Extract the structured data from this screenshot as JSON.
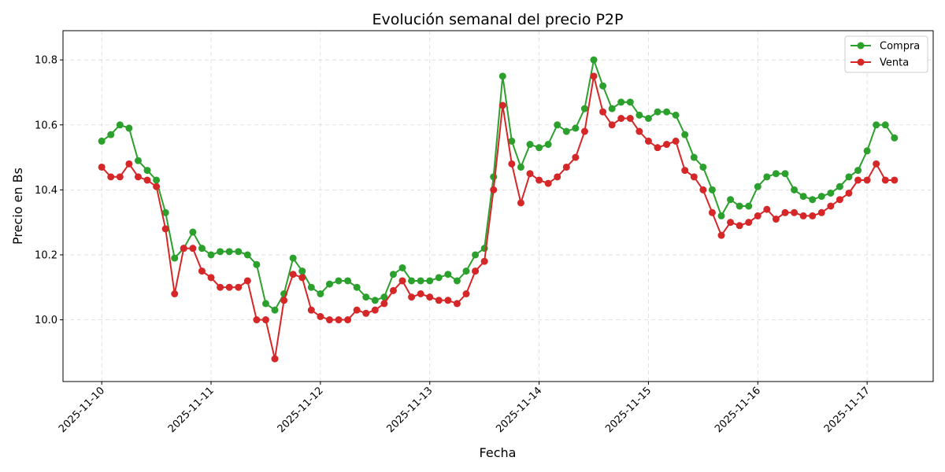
{
  "chart_data": {
    "type": "line",
    "title": "Evolución semanal del precio P2P",
    "xlabel": "Fecha",
    "ylabel": "Precio en Bs",
    "xlim": [
      "2025-11-09 15:30",
      "2025-11-17 14:30"
    ],
    "ylim": [
      9.81,
      10.89
    ],
    "yticks": [
      "10.0",
      "10.2",
      "10.4",
      "10.6",
      "10.8"
    ],
    "xticks": [
      "2025-11-10",
      "2025-11-11",
      "2025-11-12",
      "2025-11-13",
      "2025-11-14",
      "2025-11-15",
      "2025-11-16",
      "2025-11-17"
    ],
    "grid": true,
    "legend_position": "top-right",
    "x": [
      "2025-11-10 00:00",
      "2025-11-10 02:00",
      "2025-11-10 04:00",
      "2025-11-10 06:00",
      "2025-11-10 08:00",
      "2025-11-10 10:00",
      "2025-11-10 12:00",
      "2025-11-10 14:00",
      "2025-11-10 16:00",
      "2025-11-10 18:00",
      "2025-11-10 20:00",
      "2025-11-10 22:00",
      "2025-11-11 00:00",
      "2025-11-11 02:00",
      "2025-11-11 04:00",
      "2025-11-11 06:00",
      "2025-11-11 08:00",
      "2025-11-11 10:00",
      "2025-11-11 12:00",
      "2025-11-11 14:00",
      "2025-11-11 16:00",
      "2025-11-11 18:00",
      "2025-11-11 20:00",
      "2025-11-11 22:00",
      "2025-11-12 00:00",
      "2025-11-12 02:00",
      "2025-11-12 04:00",
      "2025-11-12 06:00",
      "2025-11-12 08:00",
      "2025-11-12 10:00",
      "2025-11-12 12:00",
      "2025-11-12 14:00",
      "2025-11-12 16:00",
      "2025-11-12 18:00",
      "2025-11-12 20:00",
      "2025-11-12 22:00",
      "2025-11-13 00:00",
      "2025-11-13 02:00",
      "2025-11-13 04:00",
      "2025-11-13 06:00",
      "2025-11-13 08:00",
      "2025-11-13 10:00",
      "2025-11-13 12:00",
      "2025-11-13 14:00",
      "2025-11-13 16:00",
      "2025-11-13 18:00",
      "2025-11-13 20:00",
      "2025-11-13 22:00",
      "2025-11-14 00:00",
      "2025-11-14 02:00",
      "2025-11-14 04:00",
      "2025-11-14 06:00",
      "2025-11-14 08:00",
      "2025-11-14 10:00",
      "2025-11-14 12:00",
      "2025-11-14 14:00",
      "2025-11-14 16:00",
      "2025-11-14 18:00",
      "2025-11-14 20:00",
      "2025-11-14 22:00",
      "2025-11-15 00:00",
      "2025-11-15 02:00",
      "2025-11-15 04:00",
      "2025-11-15 06:00",
      "2025-11-15 08:00",
      "2025-11-15 10:00",
      "2025-11-15 12:00",
      "2025-11-15 14:00",
      "2025-11-15 16:00",
      "2025-11-15 18:00",
      "2025-11-15 20:00",
      "2025-11-15 22:00",
      "2025-11-16 00:00",
      "2025-11-16 02:00",
      "2025-11-16 04:00",
      "2025-11-16 06:00",
      "2025-11-16 08:00",
      "2025-11-16 10:00",
      "2025-11-16 12:00",
      "2025-11-16 14:00",
      "2025-11-16 16:00",
      "2025-11-16 18:00",
      "2025-11-16 20:00",
      "2025-11-16 22:00",
      "2025-11-17 00:00",
      "2025-11-17 02:00",
      "2025-11-17 04:00",
      "2025-11-17 06:00"
    ],
    "series": [
      {
        "name": "Compra",
        "color": "#2ca02c",
        "values": [
          10.55,
          10.57,
          10.6,
          10.59,
          10.49,
          10.46,
          10.43,
          10.33,
          10.19,
          10.22,
          10.27,
          10.22,
          10.2,
          10.21,
          10.21,
          10.21,
          10.2,
          10.17,
          10.05,
          10.03,
          10.08,
          10.19,
          10.15,
          10.1,
          10.08,
          10.11,
          10.12,
          10.12,
          10.1,
          10.07,
          10.06,
          10.07,
          10.14,
          10.16,
          10.12,
          10.12,
          10.12,
          10.13,
          10.14,
          10.12,
          10.15,
          10.2,
          10.22,
          10.44,
          10.75,
          10.55,
          10.47,
          10.54,
          10.53,
          10.54,
          10.6,
          10.58,
          10.59,
          10.65,
          10.8,
          10.72,
          10.65,
          10.67,
          10.67,
          10.63,
          10.62,
          10.64,
          10.64,
          10.63,
          10.57,
          10.5,
          10.47,
          10.4,
          10.32,
          10.37,
          10.35,
          10.35,
          10.41,
          10.44,
          10.45,
          10.45,
          10.4,
          10.38,
          10.37,
          10.38,
          10.39,
          10.41,
          10.44,
          10.46,
          10.52,
          10.6,
          10.6,
          10.56
        ]
      },
      {
        "name": "Venta",
        "color": "#d62728",
        "values": [
          10.47,
          10.44,
          10.44,
          10.48,
          10.44,
          10.43,
          10.41,
          10.28,
          10.08,
          10.22,
          10.22,
          10.15,
          10.13,
          10.1,
          10.1,
          10.1,
          10.12,
          10.0,
          10.0,
          9.88,
          10.06,
          10.14,
          10.13,
          10.03,
          10.01,
          10.0,
          10.0,
          10.0,
          10.03,
          10.02,
          10.03,
          10.05,
          10.09,
          10.12,
          10.07,
          10.08,
          10.07,
          10.06,
          10.06,
          10.05,
          10.08,
          10.15,
          10.18,
          10.4,
          10.66,
          10.48,
          10.36,
          10.45,
          10.43,
          10.42,
          10.44,
          10.47,
          10.5,
          10.58,
          10.75,
          10.64,
          10.6,
          10.62,
          10.62,
          10.58,
          10.55,
          10.53,
          10.54,
          10.55,
          10.46,
          10.44,
          10.4,
          10.33,
          10.26,
          10.3,
          10.29,
          10.3,
          10.32,
          10.34,
          10.31,
          10.33,
          10.33,
          10.32,
          10.32,
          10.33,
          10.35,
          10.37,
          10.39,
          10.43,
          10.43,
          10.48,
          10.43,
          10.43
        ]
      }
    ]
  }
}
